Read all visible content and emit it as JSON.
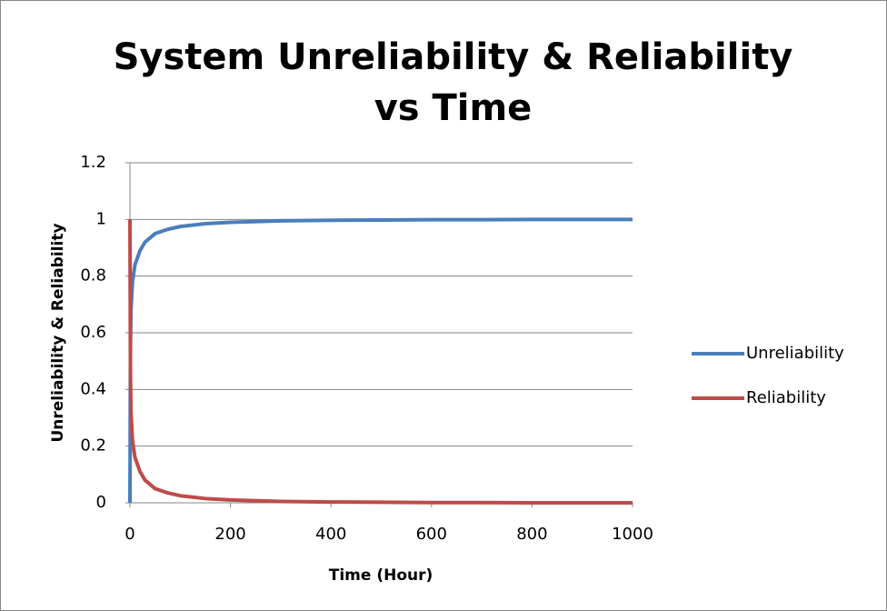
{
  "chart_data": {
    "type": "line",
    "title": "System Unreliability & Reliability vs Time",
    "x_label": "Time (Hour)",
    "y_label": "Unreliability & Reliability",
    "x": [
      0,
      1,
      2,
      5,
      10,
      20,
      30,
      50,
      75,
      100,
      150,
      200,
      300,
      400,
      500,
      600,
      700,
      800,
      900,
      1000
    ],
    "series": [
      {
        "name": "Unreliability",
        "color": "#4a7ebb",
        "values": [
          0,
          0.55,
          0.68,
          0.78,
          0.84,
          0.89,
          0.92,
          0.95,
          0.965,
          0.975,
          0.985,
          0.99,
          0.995,
          0.997,
          0.998,
          0.999,
          0.999,
          1,
          1,
          1
        ]
      },
      {
        "name": "Reliability",
        "color": "#be4b48",
        "values": [
          1,
          0.45,
          0.32,
          0.22,
          0.16,
          0.11,
          0.08,
          0.05,
          0.035,
          0.025,
          0.015,
          0.01,
          0.005,
          0.003,
          0.002,
          0.001,
          0.001,
          0,
          0,
          0
        ]
      }
    ],
    "xlim": [
      0,
      1000
    ],
    "xticks": [
      0,
      200,
      400,
      600,
      800,
      1000
    ],
    "ylim": [
      0,
      1.2
    ],
    "yticks": [
      0,
      0.2,
      0.4,
      0.6,
      0.8,
      1,
      1.2
    ],
    "grid": true,
    "legend": "right"
  }
}
